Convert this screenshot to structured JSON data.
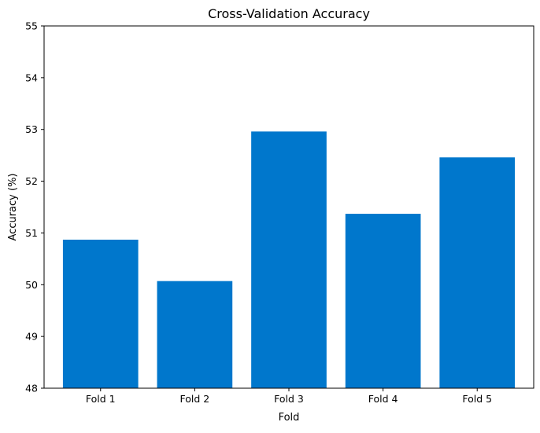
{
  "chart_data": {
    "type": "bar",
    "title": "Cross-Validation Accuracy",
    "xlabel": "Fold",
    "ylabel": "Accuracy (%)",
    "categories": [
      "Fold 1",
      "Fold 2",
      "Fold 3",
      "Fold 4",
      "Fold 5"
    ],
    "values": [
      50.87,
      50.07,
      52.96,
      51.37,
      52.46
    ],
    "ylim": [
      48,
      55
    ],
    "yticks": [
      48,
      49,
      50,
      51,
      52,
      53,
      54,
      55
    ],
    "ytick_labels": [
      "48",
      "49",
      "50",
      "51",
      "52",
      "53",
      "54",
      "55"
    ],
    "grid": false,
    "bar_color": "#0077cc"
  }
}
